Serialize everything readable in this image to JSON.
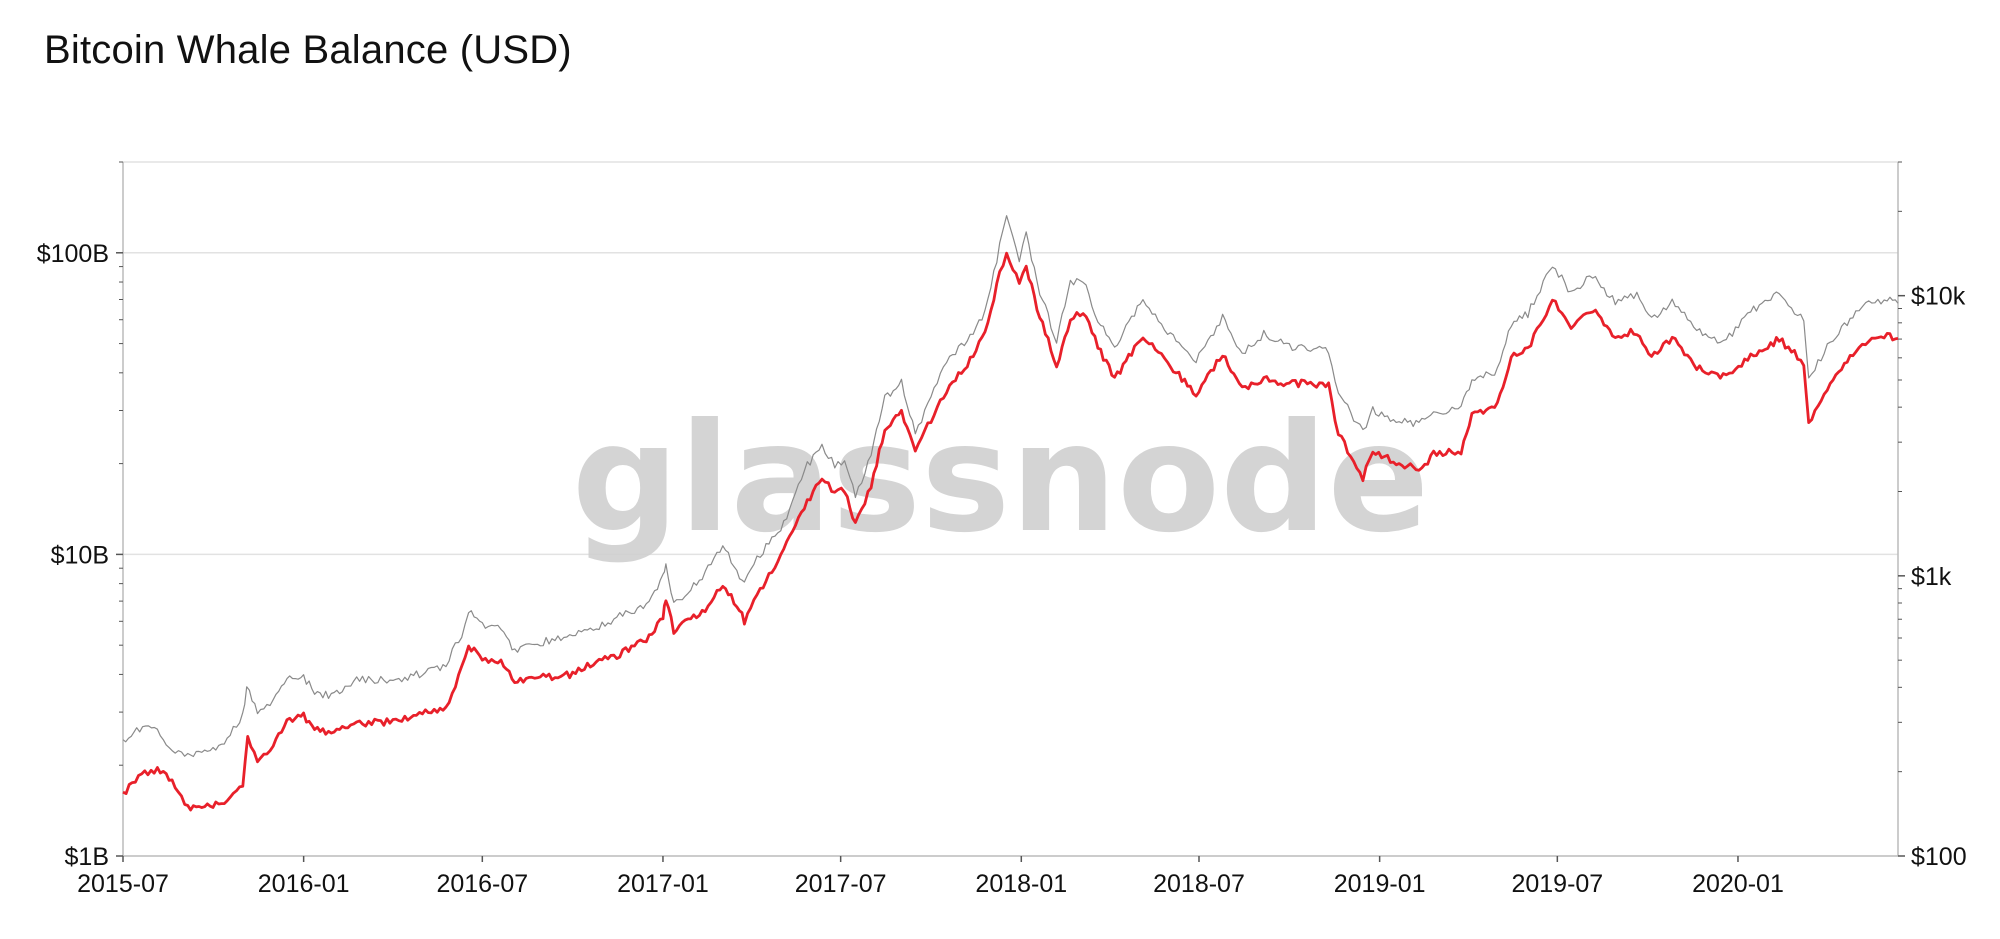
{
  "title": "Bitcoin Whale Balance (USD)",
  "watermark": "glassnode",
  "colors": {
    "balance_line": "#e8202a",
    "price_line": "#8a8a8a",
    "grid": "#e2e2e2",
    "axis": "#bbbbbb",
    "watermark": "#d0d0d0",
    "text": "#111111"
  },
  "chart_data": {
    "type": "line",
    "title": "Bitcoin Whale Balance (USD)",
    "x_axis": {
      "type": "time",
      "range": [
        "2015-07-01",
        "2020-06-12"
      ],
      "ticks": [
        "2015-07",
        "2016-01",
        "2016-07",
        "2017-01",
        "2017-07",
        "2018-01",
        "2018-07",
        "2019-01",
        "2019-07",
        "2020-01"
      ]
    },
    "y_axis_left": {
      "scale": "log",
      "range": [
        1000000000,
        200000000000
      ],
      "ticks": [
        {
          "value": 1000000000,
          "label": "$1B"
        },
        {
          "value": 10000000000,
          "label": "$10B"
        },
        {
          "value": 100000000000,
          "label": "$100B"
        }
      ],
      "grid": true
    },
    "y_axis_right": {
      "scale": "log",
      "range": [
        100,
        30000
      ],
      "ticks": [
        {
          "value": 100,
          "label": "$100"
        },
        {
          "value": 1000,
          "label": "$1k"
        },
        {
          "value": 10000,
          "label": "$10k"
        }
      ]
    },
    "legend": "none",
    "series": [
      {
        "axis": "left",
        "color": "#e8202a",
        "points": [
          [
            "2015-07-01",
            1600000000.0
          ],
          [
            "2015-07-20",
            1850000000.0
          ],
          [
            "2015-08-05",
            1950000000.0
          ],
          [
            "2015-08-20",
            1750000000.0
          ],
          [
            "2015-09-05",
            1450000000.0
          ],
          [
            "2015-09-25",
            1450000000.0
          ],
          [
            "2015-10-15",
            1500000000.0
          ],
          [
            "2015-10-31",
            1700000000.0
          ],
          [
            "2015-11-05",
            2500000000.0
          ],
          [
            "2015-11-15",
            2100000000.0
          ],
          [
            "2015-12-01",
            2300000000.0
          ],
          [
            "2015-12-15",
            2800000000.0
          ],
          [
            "2016-01-01",
            2900000000.0
          ],
          [
            "2016-01-15",
            2600000000.0
          ],
          [
            "2016-02-01",
            2550000000.0
          ],
          [
            "2016-02-15",
            2700000000.0
          ],
          [
            "2016-03-01",
            2750000000.0
          ],
          [
            "2016-04-01",
            2800000000.0
          ],
          [
            "2016-05-01",
            3000000000.0
          ],
          [
            "2016-05-25",
            3100000000.0
          ],
          [
            "2016-06-10",
            4200000000.0
          ],
          [
            "2016-06-17",
            5000000000.0
          ],
          [
            "2016-07-01",
            4500000000.0
          ],
          [
            "2016-07-20",
            4400000000.0
          ],
          [
            "2016-08-03",
            3800000000.0
          ],
          [
            "2016-09-01",
            3900000000.0
          ],
          [
            "2016-10-01",
            4000000000.0
          ],
          [
            "2016-10-25",
            4400000000.0
          ],
          [
            "2016-11-15",
            4600000000.0
          ],
          [
            "2016-12-15",
            5200000000.0
          ],
          [
            "2017-01-01",
            6200000000.0
          ],
          [
            "2017-01-04",
            7000000000.0
          ],
          [
            "2017-01-12",
            5600000000.0
          ],
          [
            "2017-02-10",
            6400000000.0
          ],
          [
            "2017-03-03",
            8000000000.0
          ],
          [
            "2017-03-20",
            6600000000.0
          ],
          [
            "2017-03-25",
            6000000000.0
          ],
          [
            "2017-04-10",
            7600000000.0
          ],
          [
            "2017-05-01",
            9800000000.0
          ],
          [
            "2017-05-25",
            14500000000.0
          ],
          [
            "2017-06-12",
            18000000000.0
          ],
          [
            "2017-06-25",
            16000000000.0
          ],
          [
            "2017-07-05",
            16500000000.0
          ],
          [
            "2017-07-16",
            12500000000.0
          ],
          [
            "2017-08-01",
            17000000000.0
          ],
          [
            "2017-08-15",
            26000000000.0
          ],
          [
            "2017-09-01",
            30000000000.0
          ],
          [
            "2017-09-15",
            22000000000.0
          ],
          [
            "2017-10-01",
            28000000000.0
          ],
          [
            "2017-10-20",
            36000000000.0
          ],
          [
            "2017-11-10",
            44000000000.0
          ],
          [
            "2017-11-25",
            55000000000.0
          ],
          [
            "2017-12-10",
            85000000000.0
          ],
          [
            "2017-12-17",
            102000000000.0
          ],
          [
            "2017-12-30",
            78000000000.0
          ],
          [
            "2018-01-06",
            90000000000.0
          ],
          [
            "2018-01-17",
            66000000000.0
          ],
          [
            "2018-02-06",
            42000000000.0
          ],
          [
            "2018-02-20",
            60000000000.0
          ],
          [
            "2018-03-05",
            64000000000.0
          ],
          [
            "2018-03-20",
            49000000000.0
          ],
          [
            "2018-04-06",
            38000000000.0
          ],
          [
            "2018-05-05",
            53000000000.0
          ],
          [
            "2018-05-30",
            43000000000.0
          ],
          [
            "2018-06-28",
            34000000000.0
          ],
          [
            "2018-07-25",
            46000000000.0
          ],
          [
            "2018-08-14",
            35000000000.0
          ],
          [
            "2018-09-05",
            38000000000.0
          ],
          [
            "2018-10-01",
            37000000000.0
          ],
          [
            "2018-11-10",
            36500000000.0
          ],
          [
            "2018-11-20",
            25000000000.0
          ],
          [
            "2018-12-15",
            18000000000.0
          ],
          [
            "2018-12-25",
            22000000000.0
          ],
          [
            "2019-01-15",
            20500000000.0
          ],
          [
            "2019-02-10",
            19000000000.0
          ],
          [
            "2019-02-25",
            21500000000.0
          ],
          [
            "2019-03-25",
            22000000000.0
          ],
          [
            "2019-04-05",
            29000000000.0
          ],
          [
            "2019-05-01",
            31000000000.0
          ],
          [
            "2019-05-15",
            45000000000.0
          ],
          [
            "2019-06-01",
            48000000000.0
          ],
          [
            "2019-06-26",
            70000000000.0
          ],
          [
            "2019-07-15",
            57000000000.0
          ],
          [
            "2019-08-06",
            65000000000.0
          ],
          [
            "2019-08-29",
            53000000000.0
          ],
          [
            "2019-09-20",
            55000000000.0
          ],
          [
            "2019-10-05",
            45000000000.0
          ],
          [
            "2019-10-26",
            52000000000.0
          ],
          [
            "2019-11-20",
            42000000000.0
          ],
          [
            "2019-12-17",
            39000000000.0
          ],
          [
            "2020-01-14",
            45000000000.0
          ],
          [
            "2020-02-12",
            52000000000.0
          ],
          [
            "2020-03-08",
            43000000000.0
          ],
          [
            "2020-03-13",
            27000000000.0
          ],
          [
            "2020-04-01",
            36000000000.0
          ],
          [
            "2020-04-30",
            48000000000.0
          ],
          [
            "2020-05-10",
            50000000000.0
          ],
          [
            "2020-06-01",
            53000000000.0
          ],
          [
            "2020-06-12",
            52000000000.0
          ]
        ]
      },
      {
        "axis": "right",
        "color": "#8a8a8a",
        "points": [
          [
            "2015-07-01",
            255
          ],
          [
            "2015-07-15",
            285
          ],
          [
            "2015-08-05",
            280
          ],
          [
            "2015-08-20",
            235
          ],
          [
            "2015-09-05",
            230
          ],
          [
            "2015-09-25",
            235
          ],
          [
            "2015-10-15",
            260
          ],
          [
            "2015-10-31",
            320
          ],
          [
            "2015-11-04",
            400
          ],
          [
            "2015-11-15",
            330
          ],
          [
            "2015-12-01",
            360
          ],
          [
            "2015-12-15",
            440
          ],
          [
            "2016-01-01",
            430
          ],
          [
            "2016-01-15",
            380
          ],
          [
            "2016-02-01",
            375
          ],
          [
            "2016-02-15",
            410
          ],
          [
            "2016-03-01",
            430
          ],
          [
            "2016-04-01",
            420
          ],
          [
            "2016-05-01",
            450
          ],
          [
            "2016-05-25",
            480
          ],
          [
            "2016-06-10",
            620
          ],
          [
            "2016-06-17",
            760
          ],
          [
            "2016-07-01",
            670
          ],
          [
            "2016-07-20",
            660
          ],
          [
            "2016-08-03",
            540
          ],
          [
            "2016-09-01",
            580
          ],
          [
            "2016-10-01",
            615
          ],
          [
            "2016-10-25",
            650
          ],
          [
            "2016-11-15",
            710
          ],
          [
            "2016-12-15",
            780
          ],
          [
            "2017-01-01",
            990
          ],
          [
            "2017-01-04",
            1130
          ],
          [
            "2017-01-12",
            790
          ],
          [
            "2017-02-10",
            1000
          ],
          [
            "2017-03-03",
            1280
          ],
          [
            "2017-03-20",
            990
          ],
          [
            "2017-03-25",
            940
          ],
          [
            "2017-04-10",
            1200
          ],
          [
            "2017-05-01",
            1450
          ],
          [
            "2017-05-25",
            2400
          ],
          [
            "2017-06-12",
            2900
          ],
          [
            "2017-06-25",
            2500
          ],
          [
            "2017-07-05",
            2600
          ],
          [
            "2017-07-16",
            1900
          ],
          [
            "2017-08-01",
            2700
          ],
          [
            "2017-08-15",
            4300
          ],
          [
            "2017-09-01",
            4900
          ],
          [
            "2017-09-15",
            3200
          ],
          [
            "2017-10-01",
            4400
          ],
          [
            "2017-10-20",
            6000
          ],
          [
            "2017-11-10",
            7100
          ],
          [
            "2017-11-25",
            8700
          ],
          [
            "2017-12-10",
            15000
          ],
          [
            "2017-12-17",
            19500
          ],
          [
            "2017-12-30",
            12900
          ],
          [
            "2018-01-06",
            17000
          ],
          [
            "2018-01-17",
            11000
          ],
          [
            "2018-02-06",
            6900
          ],
          [
            "2018-02-20",
            11200
          ],
          [
            "2018-03-05",
            11500
          ],
          [
            "2018-03-20",
            8200
          ],
          [
            "2018-04-06",
            6600
          ],
          [
            "2018-05-05",
            9800
          ],
          [
            "2018-05-30",
            7500
          ],
          [
            "2018-06-28",
            5900
          ],
          [
            "2018-07-25",
            8400
          ],
          [
            "2018-08-14",
            6200
          ],
          [
            "2018-09-05",
            7300
          ],
          [
            "2018-10-01",
            6600
          ],
          [
            "2018-11-10",
            6400
          ],
          [
            "2018-11-20",
            4500
          ],
          [
            "2018-12-15",
            3250
          ],
          [
            "2018-12-25",
            3900
          ],
          [
            "2019-01-15",
            3600
          ],
          [
            "2019-02-10",
            3500
          ],
          [
            "2019-02-25",
            3800
          ],
          [
            "2019-03-25",
            4000
          ],
          [
            "2019-04-05",
            5000
          ],
          [
            "2019-05-01",
            5400
          ],
          [
            "2019-05-15",
            8000
          ],
          [
            "2019-06-01",
            8600
          ],
          [
            "2019-06-26",
            13000
          ],
          [
            "2019-07-15",
            10200
          ],
          [
            "2019-08-06",
            11800
          ],
          [
            "2019-08-29",
            9500
          ],
          [
            "2019-09-20",
            10000
          ],
          [
            "2019-10-05",
            8200
          ],
          [
            "2019-10-26",
            9500
          ],
          [
            "2019-11-20",
            7600
          ],
          [
            "2019-12-17",
            6700
          ],
          [
            "2020-01-14",
            8800
          ],
          [
            "2020-02-12",
            10300
          ],
          [
            "2020-03-08",
            8100
          ],
          [
            "2020-03-13",
            5000
          ],
          [
            "2020-04-01",
            6600
          ],
          [
            "2020-04-30",
            8700
          ],
          [
            "2020-05-10",
            9500
          ],
          [
            "2020-06-01",
            9700
          ],
          [
            "2020-06-12",
            9400
          ]
        ]
      }
    ]
  }
}
